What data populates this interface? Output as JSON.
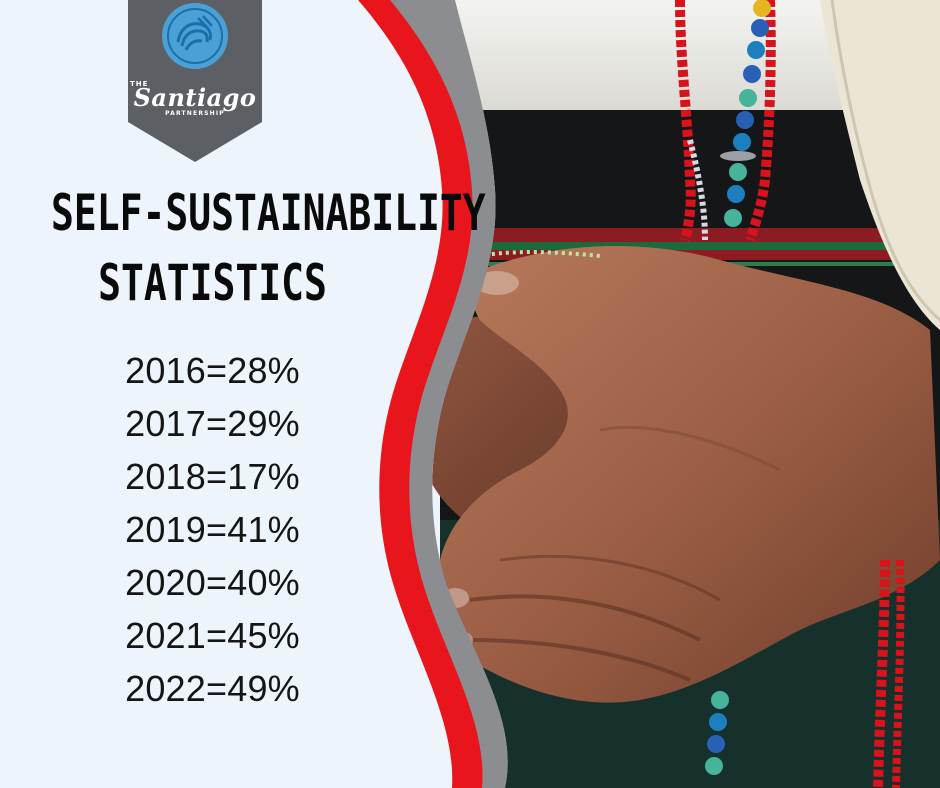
{
  "logo": {
    "the": "THE",
    "name": "Santiago",
    "sub": "PARTNERSHIP",
    "icon": "hands-circle-icon",
    "colors": {
      "badge": "#5c5f63",
      "circle": "#4ba0d6",
      "circle_inner": "#1c6fa8"
    }
  },
  "headline": {
    "line1": "SELF-SUSTAINABILITY",
    "line2": "STATISTICS"
  },
  "stats": [
    "2016=28%",
    "2017=29%",
    "2018=17%",
    "2019=41%",
    "2020=40%",
    "2021=45%",
    "2022=49%"
  ],
  "photo": {
    "subject": "clasped-hands-photo",
    "beads_icon": "beaded-necklace-icon"
  },
  "colors": {
    "background": "#eef4fb",
    "red_swoosh": "#e8161c",
    "gray_swoosh": "#8c8d90",
    "text": "#0a0a0a"
  }
}
